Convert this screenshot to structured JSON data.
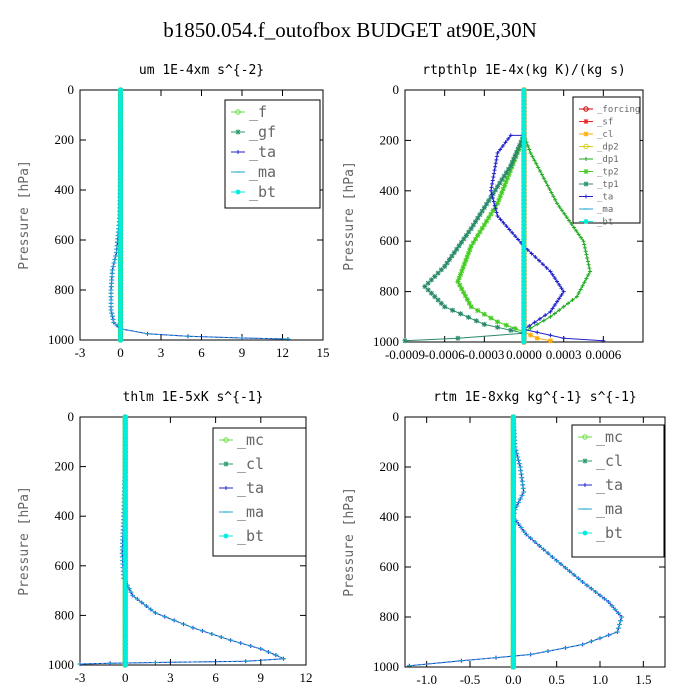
{
  "title": "b1850.054.f_outofbox  BUDGET at90E,30N",
  "chart_data": [
    {
      "type": "line",
      "title": "um  1E-4xm s^{-2}",
      "ylabel": "Pressure [hPa]",
      "xlim": [
        -3,
        15
      ],
      "ylim": [
        0,
        1000
      ],
      "xticks": [
        "-3",
        "0",
        "3",
        "6",
        "9",
        "12",
        "15"
      ],
      "xtick_values": [
        -3,
        0,
        3,
        6,
        9,
        12,
        15
      ],
      "yticks": [
        "0",
        "200",
        "400",
        "600",
        "800",
        "1000"
      ],
      "ytick_values": [
        0,
        200,
        400,
        600,
        800,
        1000
      ],
      "legend": "top-right",
      "series": [
        {
          "name": "_f",
          "color": "#66dd44",
          "marker": "circle",
          "points": [
            [
              0,
              0
            ],
            [
              0,
              1000
            ]
          ]
        },
        {
          "name": "_gf",
          "color": "#2a9a6a",
          "marker": "star",
          "points": [
            [
              0,
              0
            ],
            [
              0,
              1000
            ]
          ]
        },
        {
          "name": "_ta",
          "color": "#2222cc",
          "marker": "plus",
          "points": [
            [
              0,
              0
            ],
            [
              0,
              300
            ],
            [
              -0.05,
              500
            ],
            [
              -0.3,
              650
            ],
            [
              -0.6,
              720
            ],
            [
              -0.7,
              800
            ],
            [
              -0.7,
              880
            ],
            [
              -0.5,
              930
            ],
            [
              0,
              955
            ],
            [
              2,
              975
            ],
            [
              5,
              985
            ],
            [
              9,
              992
            ],
            [
              12.4,
              996
            ]
          ]
        },
        {
          "name": "_ma",
          "color": "#22aacc",
          "marker": "dash",
          "points": [
            [
              0,
              0
            ],
            [
              0,
              300
            ],
            [
              -0.05,
              500
            ],
            [
              -0.3,
              650
            ],
            [
              -0.6,
              720
            ],
            [
              -0.7,
              800
            ],
            [
              -0.7,
              880
            ],
            [
              -0.5,
              930
            ],
            [
              0,
              955
            ],
            [
              2,
              975
            ],
            [
              5,
              985
            ],
            [
              9,
              992
            ],
            [
              12.4,
              996
            ]
          ]
        },
        {
          "name": "_bt",
          "color": "#00eedd",
          "marker": "dot",
          "points": [
            [
              0,
              0
            ],
            [
              0,
              1000
            ]
          ]
        }
      ]
    },
    {
      "type": "line",
      "title": "rtpthlp  1E-4x(kg K)/(kg s)",
      "ylabel": "Pressure [hPa]",
      "xlim": [
        -0.0009,
        0.0009
      ],
      "ylim": [
        0,
        1000
      ],
      "xticks": [
        "-0.0009",
        "-0.0006",
        "-0.0003",
        "0.0000",
        "0.0003",
        "0.0006"
      ],
      "xtick_values": [
        -0.0009,
        -0.0006,
        -0.0003,
        0,
        0.0003,
        0.0006
      ],
      "yticks": [
        "0",
        "200",
        "400",
        "600",
        "800",
        "1000"
      ],
      "ytick_values": [
        0,
        200,
        400,
        600,
        800,
        1000
      ],
      "legend": "top-right",
      "series": [
        {
          "name": "_forcing",
          "color": "#cc0000",
          "marker": "circle",
          "points": [
            [
              0,
              0
            ],
            [
              0,
              1000
            ]
          ]
        },
        {
          "name": "_sf",
          "color": "#ee2222",
          "marker": "star",
          "points": [
            [
              0,
              0
            ],
            [
              0,
              1000
            ]
          ]
        },
        {
          "name": "_cl",
          "color": "#ffaa00",
          "marker": "star",
          "points": [
            [
              0,
              0
            ],
            [
              0,
              960
            ],
            [
              0.0001,
              985
            ],
            [
              0.0002,
              995
            ]
          ]
        },
        {
          "name": "_dp2",
          "color": "#ddcc22",
          "marker": "circle",
          "points": [
            [
              0,
              0
            ],
            [
              0,
              1000
            ]
          ]
        },
        {
          "name": "_dp1",
          "color": "#22aa22",
          "marker": "plus",
          "points": [
            [
              0,
              180
            ],
            [
              5e-05,
              250
            ],
            [
              0.00025,
              450
            ],
            [
              0.00045,
              600
            ],
            [
              0.0005,
              720
            ],
            [
              0.0004,
              820
            ],
            [
              0.0002,
              900
            ],
            [
              0,
              960
            ]
          ]
        },
        {
          "name": "_tp2",
          "color": "#44cc22",
          "marker": "star",
          "points": [
            [
              0,
              180
            ],
            [
              -5e-05,
              250
            ],
            [
              -0.0002,
              450
            ],
            [
              -0.0004,
              620
            ],
            [
              -0.0005,
              760
            ],
            [
              -0.0004,
              860
            ],
            [
              -0.0002,
              920
            ],
            [
              0,
              960
            ]
          ]
        },
        {
          "name": "_tp1",
          "color": "#2a8a6a",
          "marker": "star",
          "points": [
            [
              0,
              180
            ],
            [
              -0.0001,
              300
            ],
            [
              -0.0004,
              550
            ],
            [
              -0.0006,
              700
            ],
            [
              -0.00075,
              780
            ],
            [
              -0.0006,
              860
            ],
            [
              -0.0003,
              930
            ],
            [
              0,
              965
            ],
            [
              -0.0005,
              985
            ],
            [
              -0.0009,
              995
            ]
          ]
        },
        {
          "name": "_ta",
          "color": "#2222cc",
          "marker": "plus",
          "points": [
            [
              0,
              180
            ],
            [
              -0.0001,
              180
            ],
            [
              -0.0002,
              250
            ],
            [
              -0.00025,
              400
            ],
            [
              -0.0002,
              500
            ],
            [
              0,
              620
            ],
            [
              0.0002,
              720
            ],
            [
              0.0003,
              800
            ],
            [
              0.0002,
              880
            ],
            [
              0,
              950
            ],
            [
              0.0003,
              985
            ],
            [
              0.0006,
              995
            ]
          ]
        },
        {
          "name": "_ma",
          "color": "#22aacc",
          "marker": "dash",
          "points": [
            [
              0,
              0
            ],
            [
              0,
              1000
            ]
          ]
        },
        {
          "name": "_bt",
          "color": "#00eedd",
          "marker": "dot",
          "points": [
            [
              0,
              0
            ],
            [
              0,
              1000
            ]
          ]
        }
      ]
    },
    {
      "type": "line",
      "title": "thlm  1E-5xK s^{-1}",
      "ylabel": "Pressure [hPa]",
      "xlim": [
        -3,
        12
      ],
      "ylim": [
        0,
        1000
      ],
      "xticks": [
        "-3",
        "0",
        "3",
        "6",
        "9",
        "12"
      ],
      "xtick_values": [
        -3,
        0,
        3,
        6,
        9,
        12
      ],
      "yticks": [
        "0",
        "200",
        "400",
        "600",
        "800",
        "1000"
      ],
      "ytick_values": [
        0,
        200,
        400,
        600,
        800,
        1000
      ],
      "legend": "top-right",
      "series": [
        {
          "name": "_mc",
          "color": "#66dd44",
          "marker": "circle",
          "points": [
            [
              0,
              0
            ],
            [
              0,
              1000
            ]
          ]
        },
        {
          "name": "_cl",
          "color": "#2a9a6a",
          "marker": "star",
          "points": [
            [
              0,
              0
            ],
            [
              0,
              1000
            ]
          ]
        },
        {
          "name": "_ta",
          "color": "#2222cc",
          "marker": "plus",
          "points": [
            [
              0,
              0
            ],
            [
              0,
              200
            ],
            [
              -0.1,
              400
            ],
            [
              -0.2,
              550
            ],
            [
              -0.1,
              650
            ],
            [
              0.5,
              720
            ],
            [
              2,
              790
            ],
            [
              4.5,
              850
            ],
            [
              7,
              900
            ],
            [
              9,
              935
            ],
            [
              10,
              960
            ],
            [
              10.5,
              975
            ],
            [
              8,
              985
            ],
            [
              2,
              990
            ],
            [
              -1,
              993
            ],
            [
              -3,
              996
            ]
          ]
        },
        {
          "name": "_ma",
          "color": "#22aacc",
          "marker": "dash",
          "points": [
            [
              0,
              0
            ],
            [
              0,
              200
            ],
            [
              -0.1,
              400
            ],
            [
              -0.2,
              550
            ],
            [
              -0.1,
              650
            ],
            [
              0.5,
              720
            ],
            [
              2,
              790
            ],
            [
              4.5,
              850
            ],
            [
              7,
              900
            ],
            [
              9,
              935
            ],
            [
              10,
              960
            ],
            [
              10.5,
              975
            ],
            [
              8,
              985
            ],
            [
              2,
              990
            ],
            [
              -1,
              993
            ],
            [
              -3,
              996
            ]
          ]
        },
        {
          "name": "_bt",
          "color": "#00eedd",
          "marker": "dot",
          "points": [
            [
              0,
              0
            ],
            [
              0,
              1000
            ]
          ]
        }
      ]
    },
    {
      "type": "line",
      "title": "rtm  1E-8xkg kg^{-1} s^{-1}",
      "ylabel": "Pressure [hPa]",
      "xlim": [
        -1.25,
        1.75
      ],
      "ylim": [
        0,
        1000
      ],
      "xticks": [
        "-1.0",
        "-0.5",
        "0.0",
        "0.5",
        "1.0",
        "1.5"
      ],
      "xtick_values": [
        -1,
        -0.5,
        0,
        0.5,
        1,
        1.5
      ],
      "yticks": [
        "0",
        "200",
        "400",
        "600",
        "800",
        "1000"
      ],
      "ytick_values": [
        0,
        200,
        400,
        600,
        800,
        1000
      ],
      "legend": "top-right",
      "series": [
        {
          "name": "_mc",
          "color": "#66dd44",
          "marker": "circle",
          "points": [
            [
              0,
              0
            ],
            [
              0,
              1000
            ]
          ]
        },
        {
          "name": "_cl",
          "color": "#2a9a6a",
          "marker": "star",
          "points": [
            [
              0,
              0
            ],
            [
              0,
              1000
            ]
          ]
        },
        {
          "name": "_ta",
          "color": "#2222cc",
          "marker": "plus",
          "points": [
            [
              0,
              0
            ],
            [
              0.02,
              120
            ],
            [
              0.08,
              200
            ],
            [
              0.12,
              300
            ],
            [
              0.02,
              370
            ],
            [
              0,
              400
            ],
            [
              0.15,
              470
            ],
            [
              0.45,
              560
            ],
            [
              0.8,
              660
            ],
            [
              1.1,
              740
            ],
            [
              1.25,
              800
            ],
            [
              1.2,
              860
            ],
            [
              0.8,
              910
            ],
            [
              0.2,
              950
            ],
            [
              -0.6,
              975
            ],
            [
              -1.2,
              995
            ]
          ]
        },
        {
          "name": "_ma",
          "color": "#22aacc",
          "marker": "dash",
          "points": [
            [
              0,
              0
            ],
            [
              0.02,
              120
            ],
            [
              0.08,
              200
            ],
            [
              0.12,
              300
            ],
            [
              0.02,
              370
            ],
            [
              0,
              400
            ],
            [
              0.15,
              470
            ],
            [
              0.45,
              560
            ],
            [
              0.8,
              660
            ],
            [
              1.1,
              740
            ],
            [
              1.25,
              800
            ],
            [
              1.2,
              860
            ],
            [
              0.8,
              910
            ],
            [
              0.2,
              950
            ],
            [
              -0.6,
              975
            ],
            [
              -1.2,
              995
            ]
          ]
        },
        {
          "name": "_bt",
          "color": "#00eedd",
          "marker": "dot",
          "points": [
            [
              0,
              0
            ],
            [
              0,
              1000
            ]
          ]
        }
      ]
    }
  ]
}
